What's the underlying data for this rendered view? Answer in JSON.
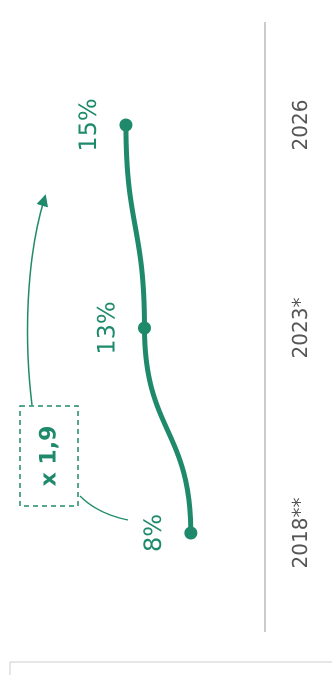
{
  "colors": {
    "accent": "#1f8a6b",
    "axis_text": "#555555",
    "gridline": "#bbbbbb",
    "border": "#cccccc"
  },
  "chart_data": {
    "type": "line",
    "orientation": "rotated-90-clockwise",
    "categories": [
      "2018**",
      "2023*",
      "2026"
    ],
    "series": [
      {
        "values": [
          8,
          13,
          15
        ],
        "labels": [
          "8%",
          "13%",
          "15%"
        ]
      }
    ],
    "ylim": [
      0,
      17
    ],
    "annotation": "x 1,9",
    "grid": false
  }
}
